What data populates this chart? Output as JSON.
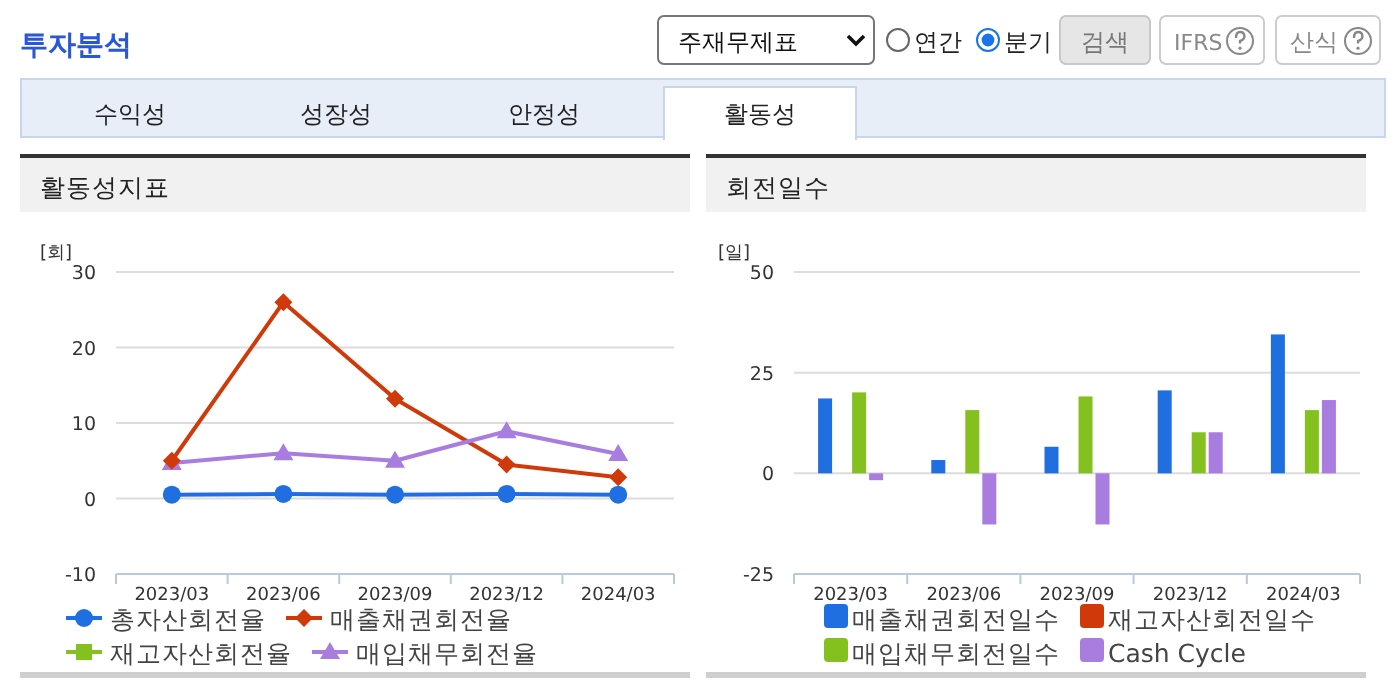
{
  "chart_data": [
    {
      "type": "other",
      "title": "투자분석",
      "annotations": [
        "주재무제표",
        "연간",
        "분기",
        "검색",
        "IFRS",
        "산식",
        "수익성",
        "성장성",
        "안정성",
        "활동성"
      ]
    },
    {
      "type": "line",
      "title": "활동성지표",
      "ylabel": "[회]",
      "categories": [
        "2023/03",
        "2023/06",
        "2023/09",
        "2023/12",
        "2024/03"
      ],
      "ylim": [
        -10,
        30
      ],
      "yticks": [
        -10,
        0,
        10,
        20,
        30
      ],
      "grid": "y",
      "legend": "bottom",
      "series": [
        {
          "name": "총자산회전율",
          "color": "#1f6fe0",
          "marker": "circle",
          "values": [
            0.5,
            0.6,
            0.5,
            0.6,
            0.5
          ]
        },
        {
          "name": "매출채권회전율",
          "color": "#d03a0a",
          "marker": "diamond",
          "values": [
            5,
            26,
            13.2,
            4.5,
            2.8
          ]
        },
        {
          "name": "재고자산회전율",
          "color": "#84c11f",
          "marker": "square",
          "values": [
            null,
            null,
            null,
            null,
            null
          ]
        },
        {
          "name": "매입채무회전율",
          "color": "#a97de0",
          "marker": "triangle",
          "values": [
            4.7,
            6,
            5,
            8.9,
            5.9
          ]
        }
      ]
    },
    {
      "type": "bar",
      "title": "회전일수",
      "ylabel": "[일]",
      "categories": [
        "2023/03",
        "2023/06",
        "2023/09",
        "2023/12",
        "2024/03"
      ],
      "ylim": [
        -25,
        50
      ],
      "yticks": [
        -25,
        0,
        25,
        50
      ],
      "grid": "y",
      "legend": "bottom",
      "series": [
        {
          "name": "매출채권회전일수",
          "color": "#1f6fe0",
          "values": [
            18.6,
            3.3,
            6.6,
            20.6,
            34.5
          ]
        },
        {
          "name": "재고자산회전일수",
          "color": "#d03a0a",
          "values": [
            null,
            null,
            null,
            null,
            null
          ]
        },
        {
          "name": "매입채무회전일수",
          "color": "#84c11f",
          "values": [
            20.1,
            15.7,
            19.1,
            10.2,
            15.7
          ]
        },
        {
          "name": "Cash Cycle",
          "color": "#a97de0",
          "values": [
            -1.7,
            -12.7,
            -12.7,
            10.2,
            18.2
          ]
        }
      ]
    }
  ]
}
